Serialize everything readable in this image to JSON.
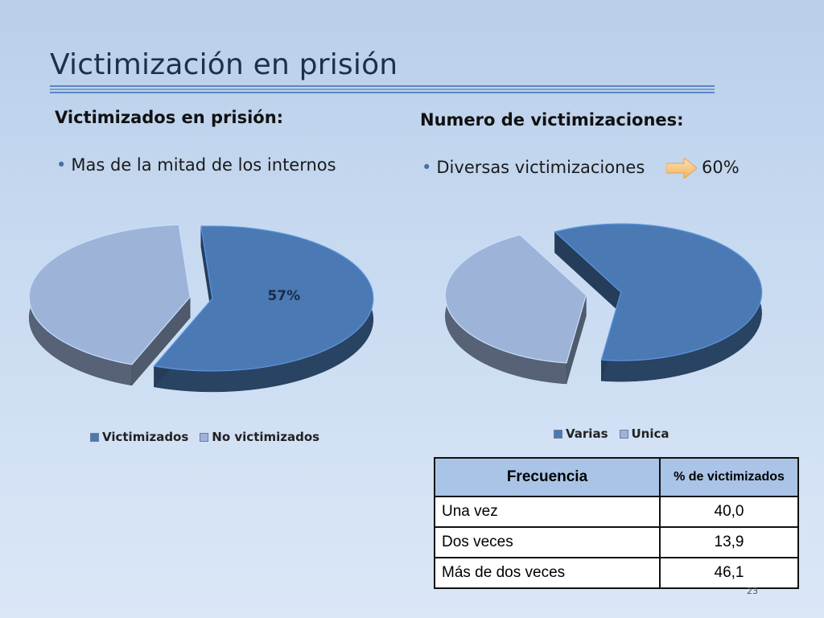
{
  "slide": {
    "title": "Victimización en prisión",
    "page_number": "23"
  },
  "left": {
    "heading": "Victimizados en prisión:",
    "bullet": "Mas de la mitad de los internos",
    "pie_label": "57%",
    "legend": [
      "Victimizados",
      "No victimizados"
    ]
  },
  "right": {
    "heading": "Numero de victimizaciones:",
    "bullet": "Diversas victimizaciones",
    "bullet_value": "60%",
    "legend": [
      "Varias",
      "Unica"
    ]
  },
  "table": {
    "headers": [
      "Frecuencia",
      "% de victimizados"
    ],
    "rows": [
      [
        "Una vez",
        "40,0"
      ],
      [
        "Dos veces",
        "13,9"
      ],
      [
        "Más de dos veces",
        "46,1"
      ]
    ]
  },
  "colors": {
    "series_primary": "#4a79b4",
    "series_secondary": "#9eb3d8",
    "arrow": "#f7c98a"
  },
  "chart_data": [
    {
      "type": "pie",
      "categories": [
        "Victimizados",
        "No victimizados"
      ],
      "values": [
        57,
        43
      ],
      "data_labels": [
        "57%",
        ""
      ],
      "legend": "bottom"
    },
    {
      "type": "pie",
      "categories": [
        "Varias",
        "Unica"
      ],
      "values": [
        60,
        40
      ],
      "legend": "bottom"
    }
  ]
}
